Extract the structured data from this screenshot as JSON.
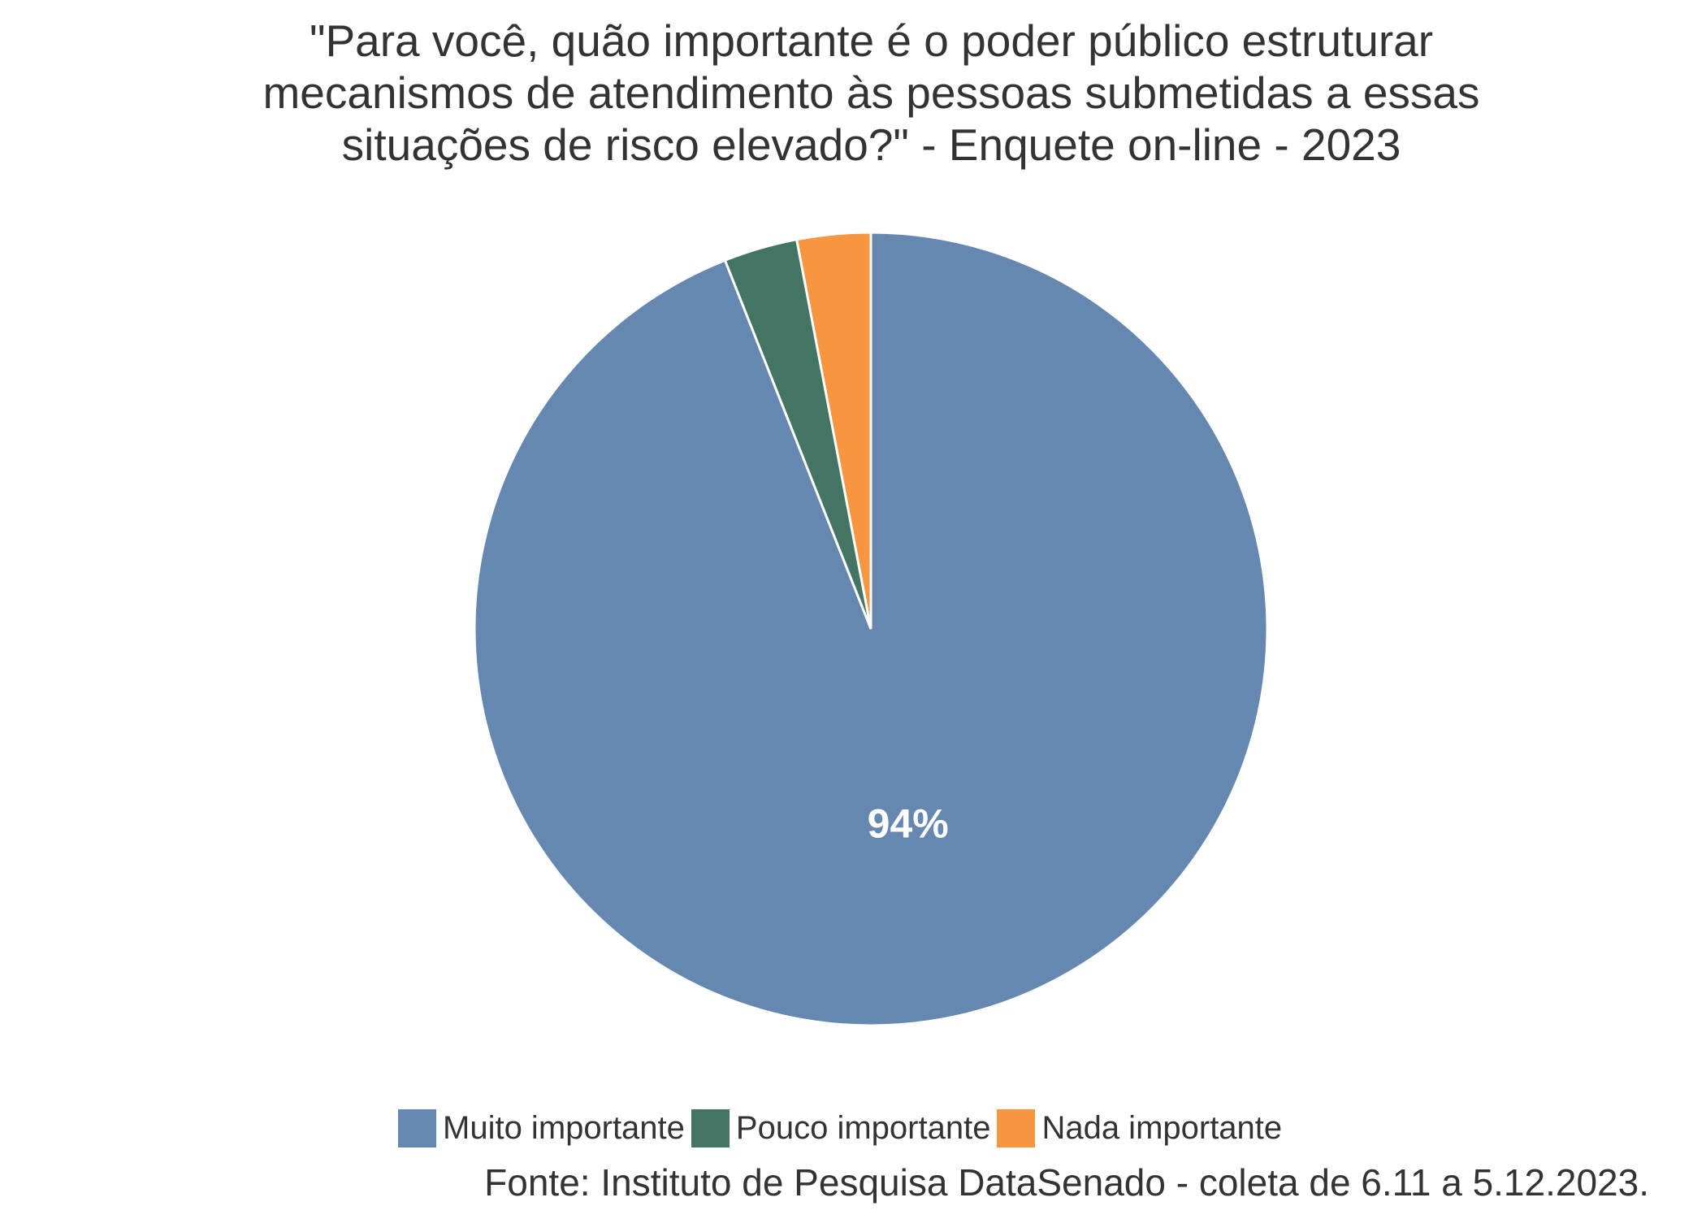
{
  "chart_data": {
    "type": "pie",
    "title": "\"Para você, quão importante é o poder público estruturar mecanismos de atendimento às pessoas submetidas a essas situações de risco elevado?\" - Enquete on-line - 2023",
    "title_lines": [
      "\"Para você, quão importante é o poder público estruturar",
      "mecanismos de atendimento às pessoas submetidas a essas",
      "situações de risco elevado?\" - Enquete on-line - 2023"
    ],
    "categories": [
      "Muito importante",
      "Pouco importante",
      "Nada importante"
    ],
    "values": [
      94,
      3,
      3
    ],
    "labels": [
      "94%",
      "",
      ""
    ],
    "colors": [
      "#6688b0",
      "#447564",
      "#f89540"
    ],
    "legend_position": "bottom",
    "caption": "Fonte: Instituto de Pesquisa DataSenado - coleta de 6.11 a 5.12.2023."
  }
}
